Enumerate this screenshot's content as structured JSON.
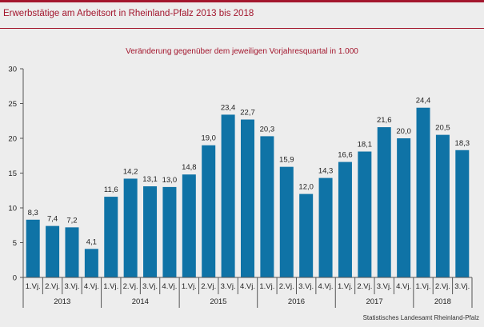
{
  "header": {
    "title": "Erwerbstätige  am  Arbeitsort  in  Rheinland-Pfalz  2013  bis 2018"
  },
  "source": "Statistisches Landesamt  Rheinland-Pfalz",
  "colors": {
    "bar": "#0f73a6",
    "accent": "#a3162d",
    "background": "#ededed"
  },
  "chart_data": {
    "type": "bar",
    "title": "",
    "subtitle": "Veränderung  gegenüber  dem jeweiligen  Vorjahresquartal  in 1.000",
    "xlabel": "",
    "ylabel": "",
    "ylim": [
      0,
      30
    ],
    "yticks": [
      0,
      5,
      10,
      15,
      20,
      25,
      30
    ],
    "grid": false,
    "legend": "none",
    "categories": [
      "1.Vj.",
      "2.Vj.",
      "3.Vj.",
      "4.Vj.",
      "1.Vj.",
      "2.Vj.",
      "3.Vj.",
      "4.Vj.",
      "1.Vj.",
      "2.Vj.",
      "3.Vj.",
      "4.Vj.",
      "1.Vj.",
      "2.Vj.",
      "3.Vj.",
      "4.Vj.",
      "1.Vj.",
      "2.Vj.",
      "3.Vj.",
      "4.Vj.",
      "1.Vj.",
      "2.Vj.",
      "3.Vj."
    ],
    "values": [
      8.3,
      7.4,
      7.2,
      4.1,
      11.6,
      14.2,
      13.1,
      13.0,
      14.8,
      19.0,
      23.4,
      22.7,
      20.3,
      15.9,
      12.0,
      14.3,
      16.6,
      18.1,
      21.6,
      20.0,
      24.4,
      20.5,
      18.3
    ],
    "value_labels": [
      "8,3",
      "7,4",
      "7,2",
      "4,1",
      "11,6",
      "14,2",
      "13,1",
      "13,0",
      "14,8",
      "19,0",
      "23,4",
      "22,7",
      "20,3",
      "15,9",
      "12,0",
      "14,3",
      "16,6",
      "18,1",
      "21,6",
      "20,0",
      "24,4",
      "20,5",
      "18,3"
    ],
    "groups": [
      {
        "label": "2013",
        "count": 4
      },
      {
        "label": "2014",
        "count": 4
      },
      {
        "label": "2015",
        "count": 4
      },
      {
        "label": "2016",
        "count": 4
      },
      {
        "label": "2017",
        "count": 4
      },
      {
        "label": "2018",
        "count": 3
      }
    ]
  }
}
